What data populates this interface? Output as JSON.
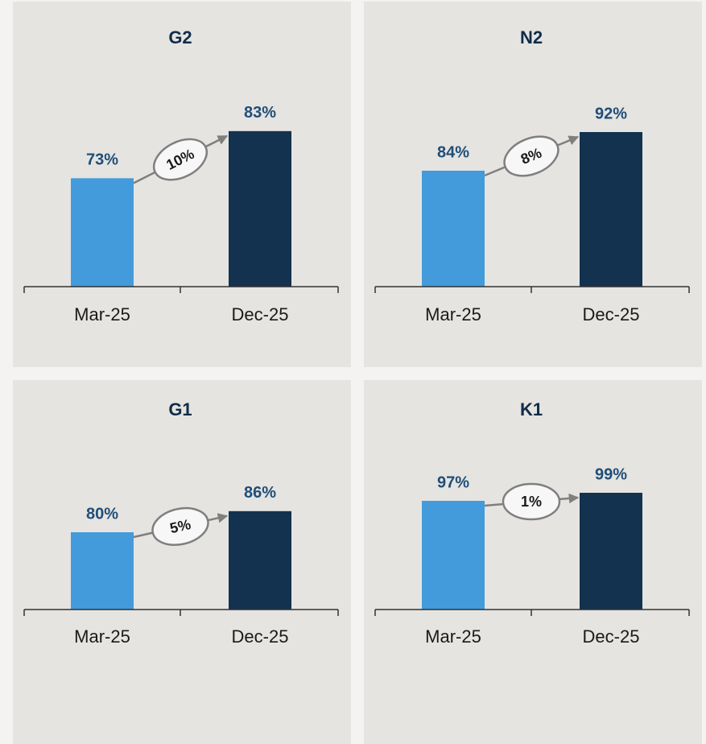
{
  "chart_data": [
    {
      "type": "bar",
      "title": "G2",
      "categories": [
        "Mar-25",
        "Dec-25"
      ],
      "values": [
        73,
        83
      ],
      "value_labels": [
        "73%",
        "83%"
      ],
      "colors": [
        "#439bdb",
        "#12324f"
      ],
      "annotation": "10%",
      "ylim": [
        50,
        91
      ]
    },
    {
      "type": "bar",
      "title": "N2",
      "categories": [
        "Mar-25",
        "Dec-25"
      ],
      "values": [
        84,
        92
      ],
      "value_labels": [
        "84%",
        "92%"
      ],
      "colors": [
        "#439bdb",
        "#12324f"
      ],
      "annotation": "8%",
      "ylim": [
        60,
        100
      ]
    },
    {
      "type": "bar",
      "title": "G1",
      "categories": [
        "Mar-25",
        "Dec-25"
      ],
      "values": [
        80,
        86
      ],
      "value_labels": [
        "80%",
        "86%"
      ],
      "colors": [
        "#439bdb",
        "#12324f"
      ],
      "annotation": "5%",
      "ylim": [
        58,
        113
      ]
    },
    {
      "type": "bar",
      "title": "K1",
      "categories": [
        "Mar-25",
        "Dec-25"
      ],
      "values": [
        97,
        99
      ],
      "value_labels": [
        "97%",
        "99%"
      ],
      "colors": [
        "#439bdb",
        "#12324f"
      ],
      "annotation": "1%",
      "ylim": [
        70,
        118
      ]
    }
  ]
}
